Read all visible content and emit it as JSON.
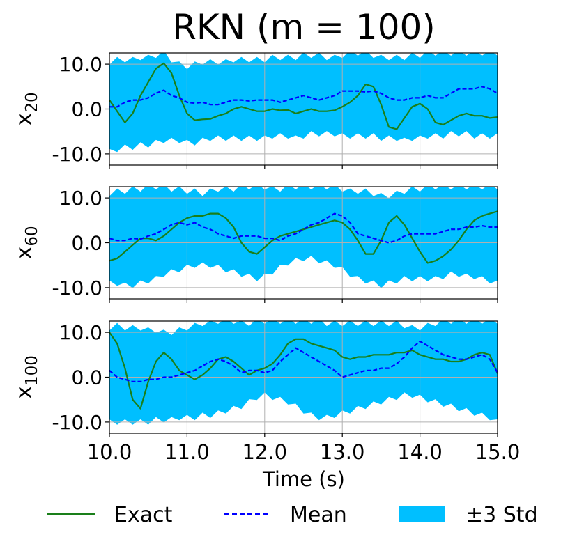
{
  "title": "RKN  (m = 100)",
  "xlabel": "Time (s)",
  "colors": {
    "exact": "#1a7f1a",
    "mean": "#0000ff",
    "band": "#00bfff",
    "grid": "#b0b0b0"
  },
  "legend": {
    "placement": "bottom",
    "items": [
      {
        "label": "Exact",
        "style": "solid-line"
      },
      {
        "label": "Mean",
        "style": "dashed-line"
      },
      {
        "label": "±3 Std",
        "style": "filled-patch"
      }
    ]
  },
  "chart_data": [
    {
      "type": "line",
      "ylabel_base": "x",
      "ylabel_sub": "20",
      "xlim": [
        10,
        15
      ],
      "ylim": [
        -12.5,
        12.5
      ],
      "xticks": [
        "10.0",
        "11.0",
        "12.0",
        "13.0",
        "14.0",
        "15.0"
      ],
      "yticks": [
        "-10.0",
        "0.0",
        "10.0"
      ],
      "grid": true,
      "x": [
        10.0,
        10.1,
        10.2,
        10.3,
        10.4,
        10.5,
        10.6,
        10.7,
        10.8,
        10.9,
        11.0,
        11.1,
        11.2,
        11.3,
        11.4,
        11.5,
        11.6,
        11.7,
        11.8,
        11.9,
        12.0,
        12.1,
        12.2,
        12.3,
        12.4,
        12.5,
        12.6,
        12.7,
        12.8,
        12.9,
        13.0,
        13.1,
        13.2,
        13.3,
        13.4,
        13.5,
        13.6,
        13.7,
        13.8,
        13.9,
        14.0,
        14.1,
        14.2,
        14.3,
        14.4,
        14.5,
        14.6,
        14.7,
        14.8,
        14.9,
        15.0
      ],
      "series": [
        {
          "name": "Exact",
          "values": [
            2.0,
            -0.5,
            -3.0,
            -1.0,
            3.0,
            6.0,
            9.0,
            10.2,
            8.0,
            3.0,
            -1.0,
            -2.5,
            -2.3,
            -2.2,
            -1.5,
            -1.0,
            0.0,
            0.5,
            0.0,
            -0.5,
            -0.5,
            0.0,
            -0.3,
            -0.2,
            -1.0,
            -0.5,
            0.0,
            -0.5,
            -0.5,
            -0.3,
            0.5,
            1.5,
            3.0,
            5.5,
            5.0,
            1.0,
            -4.0,
            -4.5,
            -2.0,
            0.5,
            1.2,
            0.0,
            -3.0,
            -3.5,
            -2.5,
            -1.5,
            -1.0,
            -1.5,
            -1.5,
            -2.0,
            -1.8
          ]
        },
        {
          "name": "Mean",
          "values": [
            0.5,
            0.5,
            1.5,
            2.0,
            2.0,
            2.5,
            3.5,
            4.2,
            3.0,
            2.5,
            1.5,
            1.3,
            1.5,
            1.0,
            1.0,
            1.5,
            2.0,
            2.0,
            1.8,
            2.0,
            2.0,
            2.0,
            1.5,
            2.0,
            2.5,
            3.0,
            2.5,
            2.0,
            2.5,
            3.0,
            4.0,
            4.0,
            4.0,
            3.8,
            4.0,
            3.5,
            2.5,
            2.0,
            2.0,
            2.5,
            2.5,
            3.0,
            2.5,
            2.5,
            3.5,
            4.5,
            4.5,
            4.5,
            5.0,
            4.5,
            3.5
          ]
        },
        {
          "name": "±3 Std",
          "lower": [
            -9.5,
            -9.0,
            -8.5,
            -8.5,
            -8.0,
            -8.0,
            -7.5,
            -7.0,
            -7.0,
            -7.0,
            -7.5,
            -7.5,
            -7.0,
            -6.5,
            -6.5,
            -6.5,
            -6.5,
            -6.5,
            -6.5,
            -6.5,
            -6.5,
            -6.0,
            -6.0,
            -6.0,
            -6.5,
            -6.0,
            -5.5,
            -5.5,
            -5.5,
            -5.5,
            -6.0,
            -6.0,
            -6.0,
            -6.0,
            -6.0,
            -6.5,
            -6.5,
            -6.5,
            -7.0,
            -6.5,
            -6.5,
            -6.0,
            -6.0,
            -6.0,
            -5.5,
            -5.5,
            -5.5,
            -6.0,
            -6.0,
            -6.0,
            -6.0
          ],
          "upper": [
            10.5,
            11.0,
            11.0,
            11.0,
            11.5,
            11.5,
            12.0,
            12.5,
            11.0,
            10.0,
            9.5,
            10.0,
            10.5,
            10.5,
            10.5,
            10.5,
            11.0,
            11.0,
            11.0,
            11.0,
            11.0,
            11.5,
            11.5,
            11.5,
            11.5,
            12.0,
            12.0,
            12.0,
            11.5,
            11.5,
            12.0,
            12.5,
            12.5,
            12.5,
            12.0,
            11.5,
            11.5,
            11.5,
            11.5,
            12.0,
            12.0,
            12.5,
            12.5,
            12.5,
            12.5,
            12.5,
            12.5,
            12.5,
            12.5,
            12.5,
            12.5
          ]
        }
      ]
    },
    {
      "type": "line",
      "ylabel_base": "x",
      "ylabel_sub": "60",
      "xlim": [
        10,
        15
      ],
      "ylim": [
        -12.5,
        12.5
      ],
      "xticks": [
        "10.0",
        "11.0",
        "12.0",
        "13.0",
        "14.0",
        "15.0"
      ],
      "yticks": [
        "-10.0",
        "0.0",
        "10.0"
      ],
      "grid": true,
      "x": [
        10.0,
        10.1,
        10.2,
        10.3,
        10.4,
        10.5,
        10.6,
        10.7,
        10.8,
        10.9,
        11.0,
        11.1,
        11.2,
        11.3,
        11.4,
        11.5,
        11.6,
        11.7,
        11.8,
        11.9,
        12.0,
        12.1,
        12.2,
        12.3,
        12.4,
        12.5,
        12.6,
        12.7,
        12.8,
        12.9,
        13.0,
        13.1,
        13.2,
        13.3,
        13.4,
        13.5,
        13.6,
        13.7,
        13.8,
        13.9,
        14.0,
        14.1,
        14.2,
        14.3,
        14.4,
        14.5,
        14.6,
        14.7,
        14.8,
        14.9,
        15.0
      ],
      "series": [
        {
          "name": "Exact",
          "values": [
            -4.0,
            -3.5,
            -2.0,
            -0.5,
            1.0,
            1.0,
            0.5,
            1.5,
            3.0,
            4.5,
            5.5,
            6.0,
            6.0,
            6.5,
            6.5,
            5.5,
            3.5,
            0.0,
            -2.0,
            -2.5,
            -1.0,
            0.5,
            1.5,
            2.0,
            2.5,
            3.0,
            3.5,
            4.0,
            4.5,
            5.0,
            4.5,
            3.0,
            0.5,
            -2.5,
            -2.5,
            0.5,
            4.5,
            6.0,
            4.0,
            1.0,
            -2.0,
            -4.5,
            -4.0,
            -3.0,
            -1.5,
            0.5,
            3.0,
            5.0,
            6.0,
            6.5,
            7.0
          ]
        },
        {
          "name": "Mean",
          "values": [
            1.0,
            0.5,
            0.5,
            1.0,
            0.8,
            1.5,
            2.0,
            3.0,
            4.0,
            4.5,
            4.0,
            4.5,
            3.5,
            3.0,
            2.0,
            1.5,
            1.0,
            1.5,
            1.5,
            1.5,
            1.0,
            1.0,
            0.5,
            1.5,
            2.0,
            3.0,
            4.0,
            4.5,
            5.5,
            6.5,
            6.0,
            4.5,
            2.0,
            1.5,
            1.0,
            0.5,
            0.0,
            0.5,
            1.5,
            2.0,
            2.0,
            2.0,
            2.0,
            2.5,
            3.0,
            3.0,
            3.5,
            3.5,
            3.8,
            3.5,
            3.5
          ]
        },
        {
          "name": "±3 Std",
          "lower": [
            -9.0,
            -9.0,
            -9.5,
            -9.5,
            -9.0,
            -8.5,
            -8.0,
            -7.0,
            -6.5,
            -6.0,
            -5.5,
            -5.0,
            -5.0,
            -5.0,
            -5.5,
            -6.0,
            -6.5,
            -7.0,
            -7.5,
            -8.0,
            -7.5,
            -6.5,
            -5.5,
            -4.5,
            -4.0,
            -3.5,
            -3.5,
            -4.0,
            -4.5,
            -5.0,
            -6.0,
            -7.0,
            -8.0,
            -8.5,
            -9.0,
            -9.5,
            -9.0,
            -8.5,
            -8.0,
            -8.0,
            -8.0,
            -8.0,
            -8.0,
            -7.5,
            -7.0,
            -7.0,
            -7.5,
            -7.5,
            -8.0,
            -8.5,
            -9.0
          ],
          "upper": [
            11.0,
            11.5,
            11.5,
            12.0,
            12.0,
            12.5,
            12.5,
            12.5,
            12.0,
            12.0,
            11.5,
            11.5,
            11.0,
            11.5,
            12.0,
            12.0,
            12.0,
            12.5,
            12.5,
            12.5,
            12.5,
            12.0,
            12.0,
            12.5,
            12.5,
            12.5,
            12.5,
            12.5,
            12.5,
            12.5,
            12.0,
            11.5,
            11.5,
            11.5,
            11.0,
            10.5,
            10.5,
            11.0,
            11.5,
            12.0,
            12.0,
            12.5,
            12.5,
            12.5,
            12.5,
            12.5,
            12.5,
            12.5,
            12.5,
            12.5,
            12.5
          ]
        }
      ]
    },
    {
      "type": "line",
      "ylabel_base": "x",
      "ylabel_sub": "100",
      "xlim": [
        10,
        15
      ],
      "ylim": [
        -12.5,
        12.5
      ],
      "xticks": [
        "10.0",
        "11.0",
        "12.0",
        "13.0",
        "14.0",
        "15.0"
      ],
      "yticks": [
        "-10.0",
        "0.0",
        "10.0"
      ],
      "grid": true,
      "x": [
        10.0,
        10.1,
        10.2,
        10.3,
        10.4,
        10.5,
        10.6,
        10.7,
        10.8,
        10.9,
        11.0,
        11.1,
        11.2,
        11.3,
        11.4,
        11.5,
        11.6,
        11.7,
        11.8,
        11.9,
        12.0,
        12.1,
        12.2,
        12.3,
        12.4,
        12.5,
        12.6,
        12.7,
        12.8,
        12.9,
        13.0,
        13.1,
        13.2,
        13.3,
        13.4,
        13.5,
        13.6,
        13.7,
        13.8,
        13.9,
        14.0,
        14.1,
        14.2,
        14.3,
        14.4,
        14.5,
        14.6,
        14.7,
        14.8,
        14.9,
        15.0
      ],
      "series": [
        {
          "name": "Exact",
          "values": [
            10.0,
            7.5,
            2.0,
            -5.0,
            -7.0,
            -1.0,
            3.5,
            5.5,
            4.0,
            1.5,
            0.5,
            -0.5,
            0.5,
            2.0,
            4.0,
            4.5,
            3.5,
            2.0,
            0.5,
            1.5,
            2.0,
            3.0,
            5.0,
            7.5,
            8.5,
            8.5,
            7.5,
            7.0,
            6.5,
            6.0,
            4.5,
            4.0,
            4.5,
            4.5,
            5.0,
            5.0,
            5.0,
            5.5,
            5.5,
            6.0,
            5.0,
            4.5,
            4.0,
            4.0,
            3.5,
            3.5,
            4.0,
            5.0,
            5.5,
            5.0,
            0.8
          ]
        },
        {
          "name": "Mean",
          "values": [
            1.5,
            0.0,
            -0.5,
            -1.0,
            -1.0,
            -0.5,
            -0.5,
            0.0,
            0.0,
            0.5,
            1.0,
            1.5,
            2.5,
            3.5,
            4.0,
            3.5,
            2.5,
            1.0,
            1.5,
            1.5,
            1.0,
            1.5,
            3.5,
            5.0,
            6.5,
            5.5,
            4.5,
            3.5,
            2.5,
            1.5,
            0.0,
            0.5,
            1.0,
            1.5,
            1.5,
            2.0,
            2.0,
            3.0,
            4.5,
            6.5,
            8.0,
            7.0,
            6.0,
            5.0,
            4.5,
            4.0,
            4.0,
            4.5,
            5.0,
            4.0,
            1.0
          ]
        },
        {
          "name": "±3 Std",
          "lower": [
            -10.0,
            -10.0,
            -10.0,
            -10.0,
            -10.0,
            -10.0,
            -9.5,
            -9.5,
            -9.5,
            -9.0,
            -9.0,
            -9.0,
            -8.5,
            -8.5,
            -8.0,
            -7.5,
            -7.0,
            -6.5,
            -5.5,
            -4.5,
            -4.0,
            -4.5,
            -5.0,
            -5.5,
            -6.5,
            -7.5,
            -8.5,
            -9.0,
            -9.0,
            -8.5,
            -8.0,
            -7.5,
            -7.0,
            -6.5,
            -6.0,
            -5.5,
            -5.0,
            -4.5,
            -4.0,
            -4.0,
            -4.5,
            -5.0,
            -5.5,
            -6.0,
            -6.5,
            -7.0,
            -7.5,
            -8.0,
            -8.5,
            -9.0,
            -10.0
          ],
          "upper": [
            11.0,
            11.5,
            11.0,
            11.0,
            11.0,
            10.5,
            10.5,
            10.0,
            10.0,
            10.5,
            11.0,
            11.5,
            12.0,
            12.0,
            12.5,
            12.5,
            12.5,
            12.0,
            12.0,
            12.5,
            12.5,
            12.5,
            12.5,
            12.5,
            12.5,
            12.5,
            12.5,
            12.5,
            12.0,
            12.0,
            12.0,
            12.0,
            12.0,
            12.0,
            12.0,
            12.0,
            12.0,
            12.0,
            11.5,
            11.0,
            11.0,
            11.5,
            12.0,
            12.5,
            12.5,
            12.5,
            12.5,
            12.5,
            12.5,
            12.5,
            12.5
          ]
        }
      ]
    }
  ]
}
